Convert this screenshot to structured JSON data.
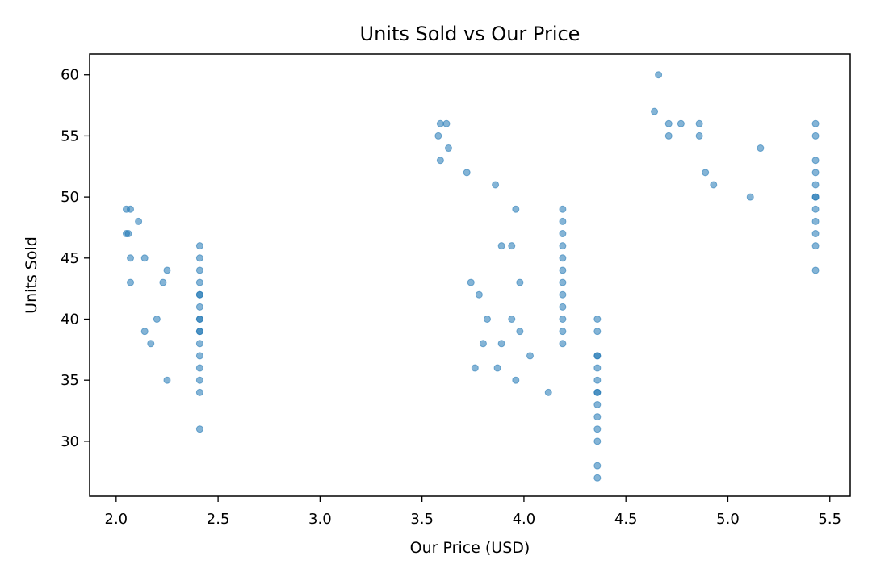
{
  "chart_data": {
    "type": "scatter",
    "title": "Units Sold vs Our Price",
    "xlabel": "Our Price (USD)",
    "ylabel": "Units Sold",
    "xlim": [
      1.87,
      5.6
    ],
    "ylim": [
      25.5,
      61.7
    ],
    "xticks": [
      2.0,
      2.5,
      3.0,
      3.5,
      4.0,
      4.5,
      5.0,
      5.5
    ],
    "xtick_labels": [
      "2.0",
      "2.5",
      "3.0",
      "3.5",
      "4.0",
      "4.5",
      "5.0",
      "5.5"
    ],
    "yticks": [
      30,
      35,
      40,
      45,
      50,
      55,
      60
    ],
    "ytick_labels": [
      "30",
      "35",
      "40",
      "45",
      "50",
      "55",
      "60"
    ],
    "grid": false,
    "legend": "none",
    "marker_color": "#1f77b4",
    "marker_alpha": 0.55,
    "series": [
      {
        "x": [
          2.05,
          2.07,
          2.05,
          2.06,
          2.11,
          2.07,
          2.14,
          2.07,
          2.23,
          2.25,
          2.2,
          2.14,
          2.17,
          2.25,
          2.41,
          2.41,
          2.41,
          2.41,
          2.41,
          2.41,
          2.41,
          2.41,
          2.41,
          2.41,
          2.41,
          2.41,
          2.41,
          2.41,
          2.41,
          2.41,
          2.41,
          3.59,
          3.62,
          3.58,
          3.63,
          3.59,
          3.72,
          3.86,
          3.96,
          3.89,
          3.94,
          3.98,
          3.74,
          3.78,
          3.82,
          3.94,
          3.98,
          3.8,
          3.89,
          4.03,
          3.76,
          3.87,
          3.96,
          4.12,
          4.19,
          4.19,
          4.19,
          4.19,
          4.19,
          4.19,
          4.19,
          4.19,
          4.19,
          4.19,
          4.19,
          4.19,
          4.36,
          4.36,
          4.36,
          4.36,
          4.36,
          4.36,
          4.36,
          4.36,
          4.36,
          4.36,
          4.36,
          4.36,
          4.36,
          4.36,
          4.66,
          4.64,
          4.71,
          4.77,
          4.86,
          4.71,
          4.86,
          4.89,
          4.93,
          5.11,
          5.16,
          5.43,
          5.43,
          5.43,
          5.43,
          5.43,
          5.43,
          5.43,
          5.43,
          5.43,
          5.43,
          5.43,
          5.43
        ],
        "y": [
          49,
          49,
          47,
          47,
          48,
          45,
          45,
          43,
          43,
          44,
          40,
          39,
          38,
          35,
          46,
          45,
          44,
          43,
          42,
          41,
          40,
          39,
          38,
          37,
          36,
          35,
          34,
          31,
          42,
          40,
          39,
          56,
          56,
          55,
          54,
          53,
          52,
          51,
          49,
          46,
          46,
          43,
          43,
          42,
          40,
          40,
          39,
          38,
          38,
          37,
          36,
          36,
          35,
          34,
          49,
          48,
          47,
          46,
          45,
          44,
          43,
          42,
          41,
          40,
          39,
          38,
          40,
          39,
          37,
          36,
          35,
          34,
          33,
          32,
          31,
          30,
          28,
          27,
          37,
          34,
          60,
          57,
          56,
          56,
          56,
          55,
          55,
          52,
          51,
          50,
          54,
          56,
          55,
          53,
          52,
          51,
          50,
          49,
          48,
          47,
          46,
          44,
          50
        ]
      }
    ]
  }
}
